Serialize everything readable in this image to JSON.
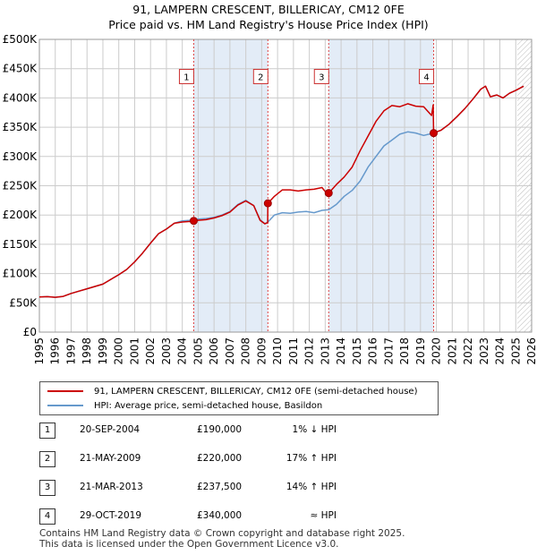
{
  "title": "91, LAMPERN CRESCENT, BILLERICAY, CM12 0FE",
  "subtitle": "Price paid vs. HM Land Registry's House Price Index (HPI)",
  "legend": {
    "property": "91, LAMPERN CRESCENT, BILLERICAY, CM12 0FE (semi-detached house)",
    "hpi": "HPI: Average price, semi-detached house, Basildon"
  },
  "colors": {
    "property": "#cc0000",
    "hpi": "#6699cc",
    "shade": "#e3ecf7",
    "grid": "#cccccc"
  },
  "sales": [
    {
      "num": "1",
      "date": "20-SEP-2004",
      "price": "£190,000",
      "hpi": "1% ↓ HPI"
    },
    {
      "num": "2",
      "date": "21-MAY-2009",
      "price": "£220,000",
      "hpi": "17% ↑ HPI"
    },
    {
      "num": "3",
      "date": "21-MAR-2013",
      "price": "£237,500",
      "hpi": "14% ↑ HPI"
    },
    {
      "num": "4",
      "date": "29-OCT-2019",
      "price": "£340,000",
      "hpi": "≈ HPI"
    }
  ],
  "footer": {
    "line1": "Contains HM Land Registry data © Crown copyright and database right 2025.",
    "line2": "This data is licensed under the Open Government Licence v3.0."
  },
  "chart_data": {
    "type": "line",
    "title": "91, LAMPERN CRESCENT, BILLERICAY, CM12 0FE",
    "xlim": [
      1995,
      2026
    ],
    "ylim": [
      0,
      500000
    ],
    "x_ticks": [
      1995,
      1996,
      1997,
      1998,
      1999,
      2000,
      2001,
      2002,
      2003,
      2004,
      2005,
      2006,
      2007,
      2008,
      2009,
      2010,
      2011,
      2012,
      2013,
      2014,
      2015,
      2016,
      2017,
      2018,
      2019,
      2020,
      2021,
      2022,
      2023,
      2024,
      2025,
      2026
    ],
    "y_ticks": [
      {
        "value": 0,
        "label": "£0"
      },
      {
        "value": 50000,
        "label": "£50K"
      },
      {
        "value": 100000,
        "label": "£100K"
      },
      {
        "value": 150000,
        "label": "£150K"
      },
      {
        "value": 200000,
        "label": "£200K"
      },
      {
        "value": 250000,
        "label": "£250K"
      },
      {
        "value": 300000,
        "label": "£300K"
      },
      {
        "value": 350000,
        "label": "£350K"
      },
      {
        "value": 400000,
        "label": "£400K"
      },
      {
        "value": 450000,
        "label": "£450K"
      },
      {
        "value": 500000,
        "label": "£500K"
      }
    ],
    "sale_markers": [
      {
        "label": "1",
        "x": 2004.72,
        "y": 190000,
        "box_y": 435000
      },
      {
        "label": "2",
        "x": 2009.39,
        "y": 220000,
        "box_y": 435000
      },
      {
        "label": "3",
        "x": 2013.22,
        "y": 237500,
        "box_y": 435000
      },
      {
        "label": "4",
        "x": 2019.83,
        "y": 340000,
        "box_y": 435000
      }
    ],
    "shaded_spans": [
      [
        2004.72,
        2009.39
      ],
      [
        2013.22,
        2019.83
      ]
    ],
    "projection_start": 2025.1,
    "series": [
      {
        "name": "HPI: Average price, semi-detached house, Basildon",
        "x": [
          1995.0,
          1995.5,
          1996.0,
          1996.5,
          1997.0,
          1997.5,
          1998.0,
          1998.5,
          1999.0,
          1999.5,
          2000.0,
          2000.5,
          2001.0,
          2001.5,
          2002.0,
          2002.5,
          2003.0,
          2003.5,
          2004.0,
          2004.5,
          2004.72,
          2005.0,
          2005.5,
          2006.0,
          2006.5,
          2007.0,
          2007.5,
          2008.0,
          2008.5,
          2008.9,
          2009.2,
          2009.39,
          2009.8,
          2010.3,
          2010.8,
          2011.3,
          2011.8,
          2012.3,
          2012.8,
          2013.22,
          2013.7,
          2014.2,
          2014.7,
          2015.2,
          2015.7,
          2016.2,
          2016.7,
          2017.2,
          2017.7,
          2018.2,
          2018.7,
          2019.2,
          2019.83,
          2020.3,
          2020.8,
          2021.3,
          2021.8,
          2022.3,
          2022.8,
          2023.1,
          2023.4,
          2023.8,
          2024.2,
          2024.6,
          2025.0,
          2025.5
        ],
        "y": [
          60000,
          60500,
          59500,
          61000,
          66000,
          70000,
          74000,
          78000,
          82000,
          90000,
          98000,
          107000,
          120000,
          135000,
          152000,
          168000,
          176000,
          186000,
          190000,
          191000,
          192000,
          193000,
          194000,
          196000,
          200000,
          206000,
          218000,
          225000,
          216000,
          192000,
          185000,
          188000,
          200000,
          204000,
          203000,
          205000,
          206000,
          204000,
          208000,
          209000,
          218000,
          232000,
          242000,
          258000,
          282000,
          300000,
          318000,
          328000,
          338000,
          342000,
          340000,
          336000,
          340000,
          345000,
          355000,
          368000,
          382000,
          398000,
          415000,
          420000,
          402000,
          405000,
          400000,
          408000,
          413000,
          420000
        ]
      },
      {
        "name": "91, LAMPERN CRESCENT, BILLERICAY, CM12 0FE (semi-detached house)",
        "x": [
          1995.0,
          1995.5,
          1996.0,
          1996.5,
          1997.0,
          1997.5,
          1998.0,
          1998.5,
          1999.0,
          1999.5,
          2000.0,
          2000.5,
          2001.0,
          2001.5,
          2002.0,
          2002.5,
          2003.0,
          2003.5,
          2004.0,
          2004.5,
          2004.72,
          2005.0,
          2005.5,
          2006.0,
          2006.5,
          2007.0,
          2007.5,
          2008.0,
          2008.5,
          2008.9,
          2009.2,
          2009.38,
          2009.39,
          2009.8,
          2010.3,
          2010.8,
          2011.3,
          2011.8,
          2012.3,
          2012.8,
          2013.0,
          2013.22,
          2013.7,
          2014.2,
          2014.7,
          2015.2,
          2015.7,
          2016.2,
          2016.7,
          2017.2,
          2017.7,
          2018.2,
          2018.7,
          2019.2,
          2019.7,
          2019.8,
          2019.83,
          2020.3,
          2020.8,
          2021.3,
          2021.8,
          2022.3,
          2022.8,
          2023.1,
          2023.4,
          2023.8,
          2024.2,
          2024.6,
          2025.0,
          2025.5
        ],
        "y": [
          60000,
          60500,
          59500,
          61000,
          66000,
          70000,
          74000,
          78000,
          82000,
          90000,
          98000,
          107000,
          120000,
          135000,
          152000,
          168000,
          176000,
          186000,
          188000,
          189000,
          190000,
          191000,
          192000,
          195000,
          199000,
          205000,
          217000,
          224000,
          216000,
          191000,
          185000,
          187000,
          220000,
          232000,
          243000,
          243000,
          241000,
          243000,
          244000,
          247000,
          240000,
          237500,
          252000,
          265000,
          282000,
          310000,
          335000,
          360000,
          378000,
          387000,
          385000,
          390000,
          386000,
          385000,
          370000,
          388000,
          340000,
          345000,
          355000,
          368000,
          382000,
          398000,
          415000,
          420000,
          402000,
          405000,
          400000,
          408000,
          413000,
          420000
        ]
      }
    ]
  }
}
